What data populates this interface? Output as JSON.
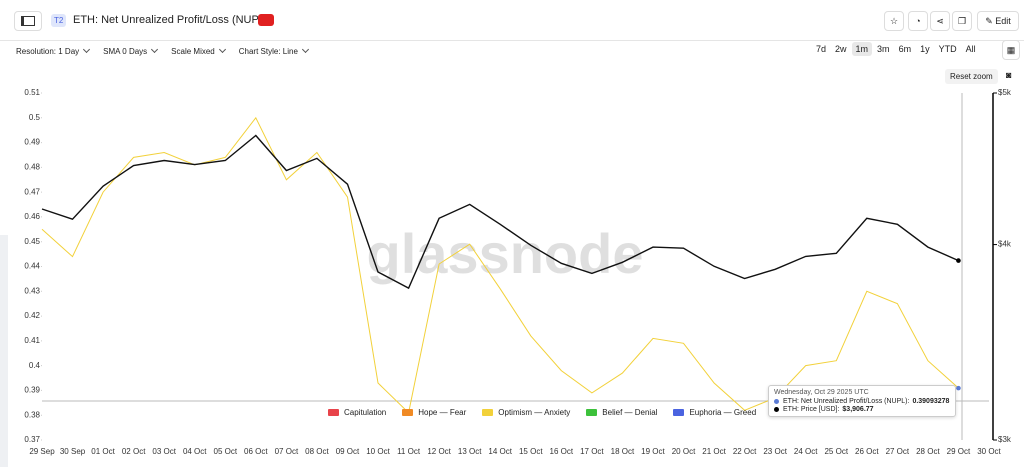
{
  "header": {
    "badge": "T2",
    "title": "ETH: Net Unrealized Profit/Loss (NUPL)",
    "edit": "Edit"
  },
  "toolbar": {
    "options": [
      "Resolution: 1 Day",
      "SMA 0 Days",
      "Scale Mixed",
      "Chart Style: Line"
    ],
    "ranges": [
      "7d",
      "2w",
      "1m",
      "3m",
      "6m",
      "1y",
      "YTD",
      "All"
    ],
    "active_range": 2,
    "reset": "Reset zoom"
  },
  "watermark": "glassnode",
  "tooltip": {
    "date": "Wednesday, Oct 29 2025 UTC",
    "rows": [
      {
        "label": "ETH: Net Unrealized Profit/Loss (NUPL):",
        "value": "0.39093278",
        "color": "#5b7bd5"
      },
      {
        "label": "ETH: Price [USD]:",
        "value": "$3,906.77",
        "color": "#000000"
      }
    ]
  },
  "chart_data": {
    "type": "line",
    "categories": [
      "29 Sep",
      "30 Sep",
      "01 Oct",
      "02 Oct",
      "03 Oct",
      "04 Oct",
      "05 Oct",
      "06 Oct",
      "07 Oct",
      "08 Oct",
      "09 Oct",
      "10 Oct",
      "11 Oct",
      "12 Oct",
      "13 Oct",
      "14 Oct",
      "15 Oct",
      "16 Oct",
      "17 Oct",
      "18 Oct",
      "19 Oct",
      "20 Oct",
      "21 Oct",
      "22 Oct",
      "23 Oct",
      "24 Oct",
      "25 Oct",
      "26 Oct",
      "27 Oct",
      "28 Oct",
      "29 Oct",
      "30 Oct"
    ],
    "series": [
      {
        "name": "ETH: Net Unrealized Profit/Loss (NUPL)",
        "color": "#f2d13a",
        "values": [
          0.455,
          0.444,
          0.47,
          0.484,
          0.486,
          0.481,
          0.484,
          0.5,
          0.475,
          0.486,
          0.468,
          0.393,
          0.381,
          0.441,
          0.449,
          0.431,
          0.412,
          0.398,
          0.389,
          0.397,
          0.411,
          0.409,
          0.393,
          0.382,
          0.387,
          0.4,
          0.402,
          0.43,
          0.425,
          0.402,
          0.39093278,
          null
        ]
      },
      {
        "name": "ETH: Price [USD]",
        "color": "#111111",
        "axis": "y2",
        "values": [
          4215,
          4152,
          4359,
          4494,
          4527,
          4500,
          4527,
          4697,
          4461,
          4541,
          4372,
          3842,
          3752,
          4158,
          4244,
          4121,
          3996,
          3891,
          3834,
          3897,
          3985,
          3979,
          3874,
          3805,
          3857,
          3931,
          3949,
          4158,
          4121,
          3985,
          3906.77,
          null
        ]
      }
    ],
    "ylim": [
      0.37,
      0.51
    ],
    "yticks": [
      0.37,
      0.38,
      0.39,
      0.4,
      0.41,
      0.42,
      0.43,
      0.44,
      0.45,
      0.46,
      0.47,
      0.48,
      0.49,
      0.5,
      0.51
    ],
    "y2lim": [
      3000,
      5000
    ],
    "y2_log": true,
    "y2ticks": [
      {
        "value": 3000,
        "label": "$3k"
      },
      {
        "value": 4000,
        "label": "$4k"
      },
      {
        "value": 5000,
        "label": "$5k"
      }
    ],
    "zones": [
      {
        "name": "Capitulation",
        "color": "#e8434a"
      },
      {
        "name": "Hope — Fear",
        "color": "#f08a24"
      },
      {
        "name": "Optimism — Anxiety",
        "color": "#f2d13a"
      },
      {
        "name": "Belief — Denial",
        "color": "#3cc13b"
      },
      {
        "name": "Euphoria — Greed",
        "color": "#4a63e0"
      }
    ]
  }
}
